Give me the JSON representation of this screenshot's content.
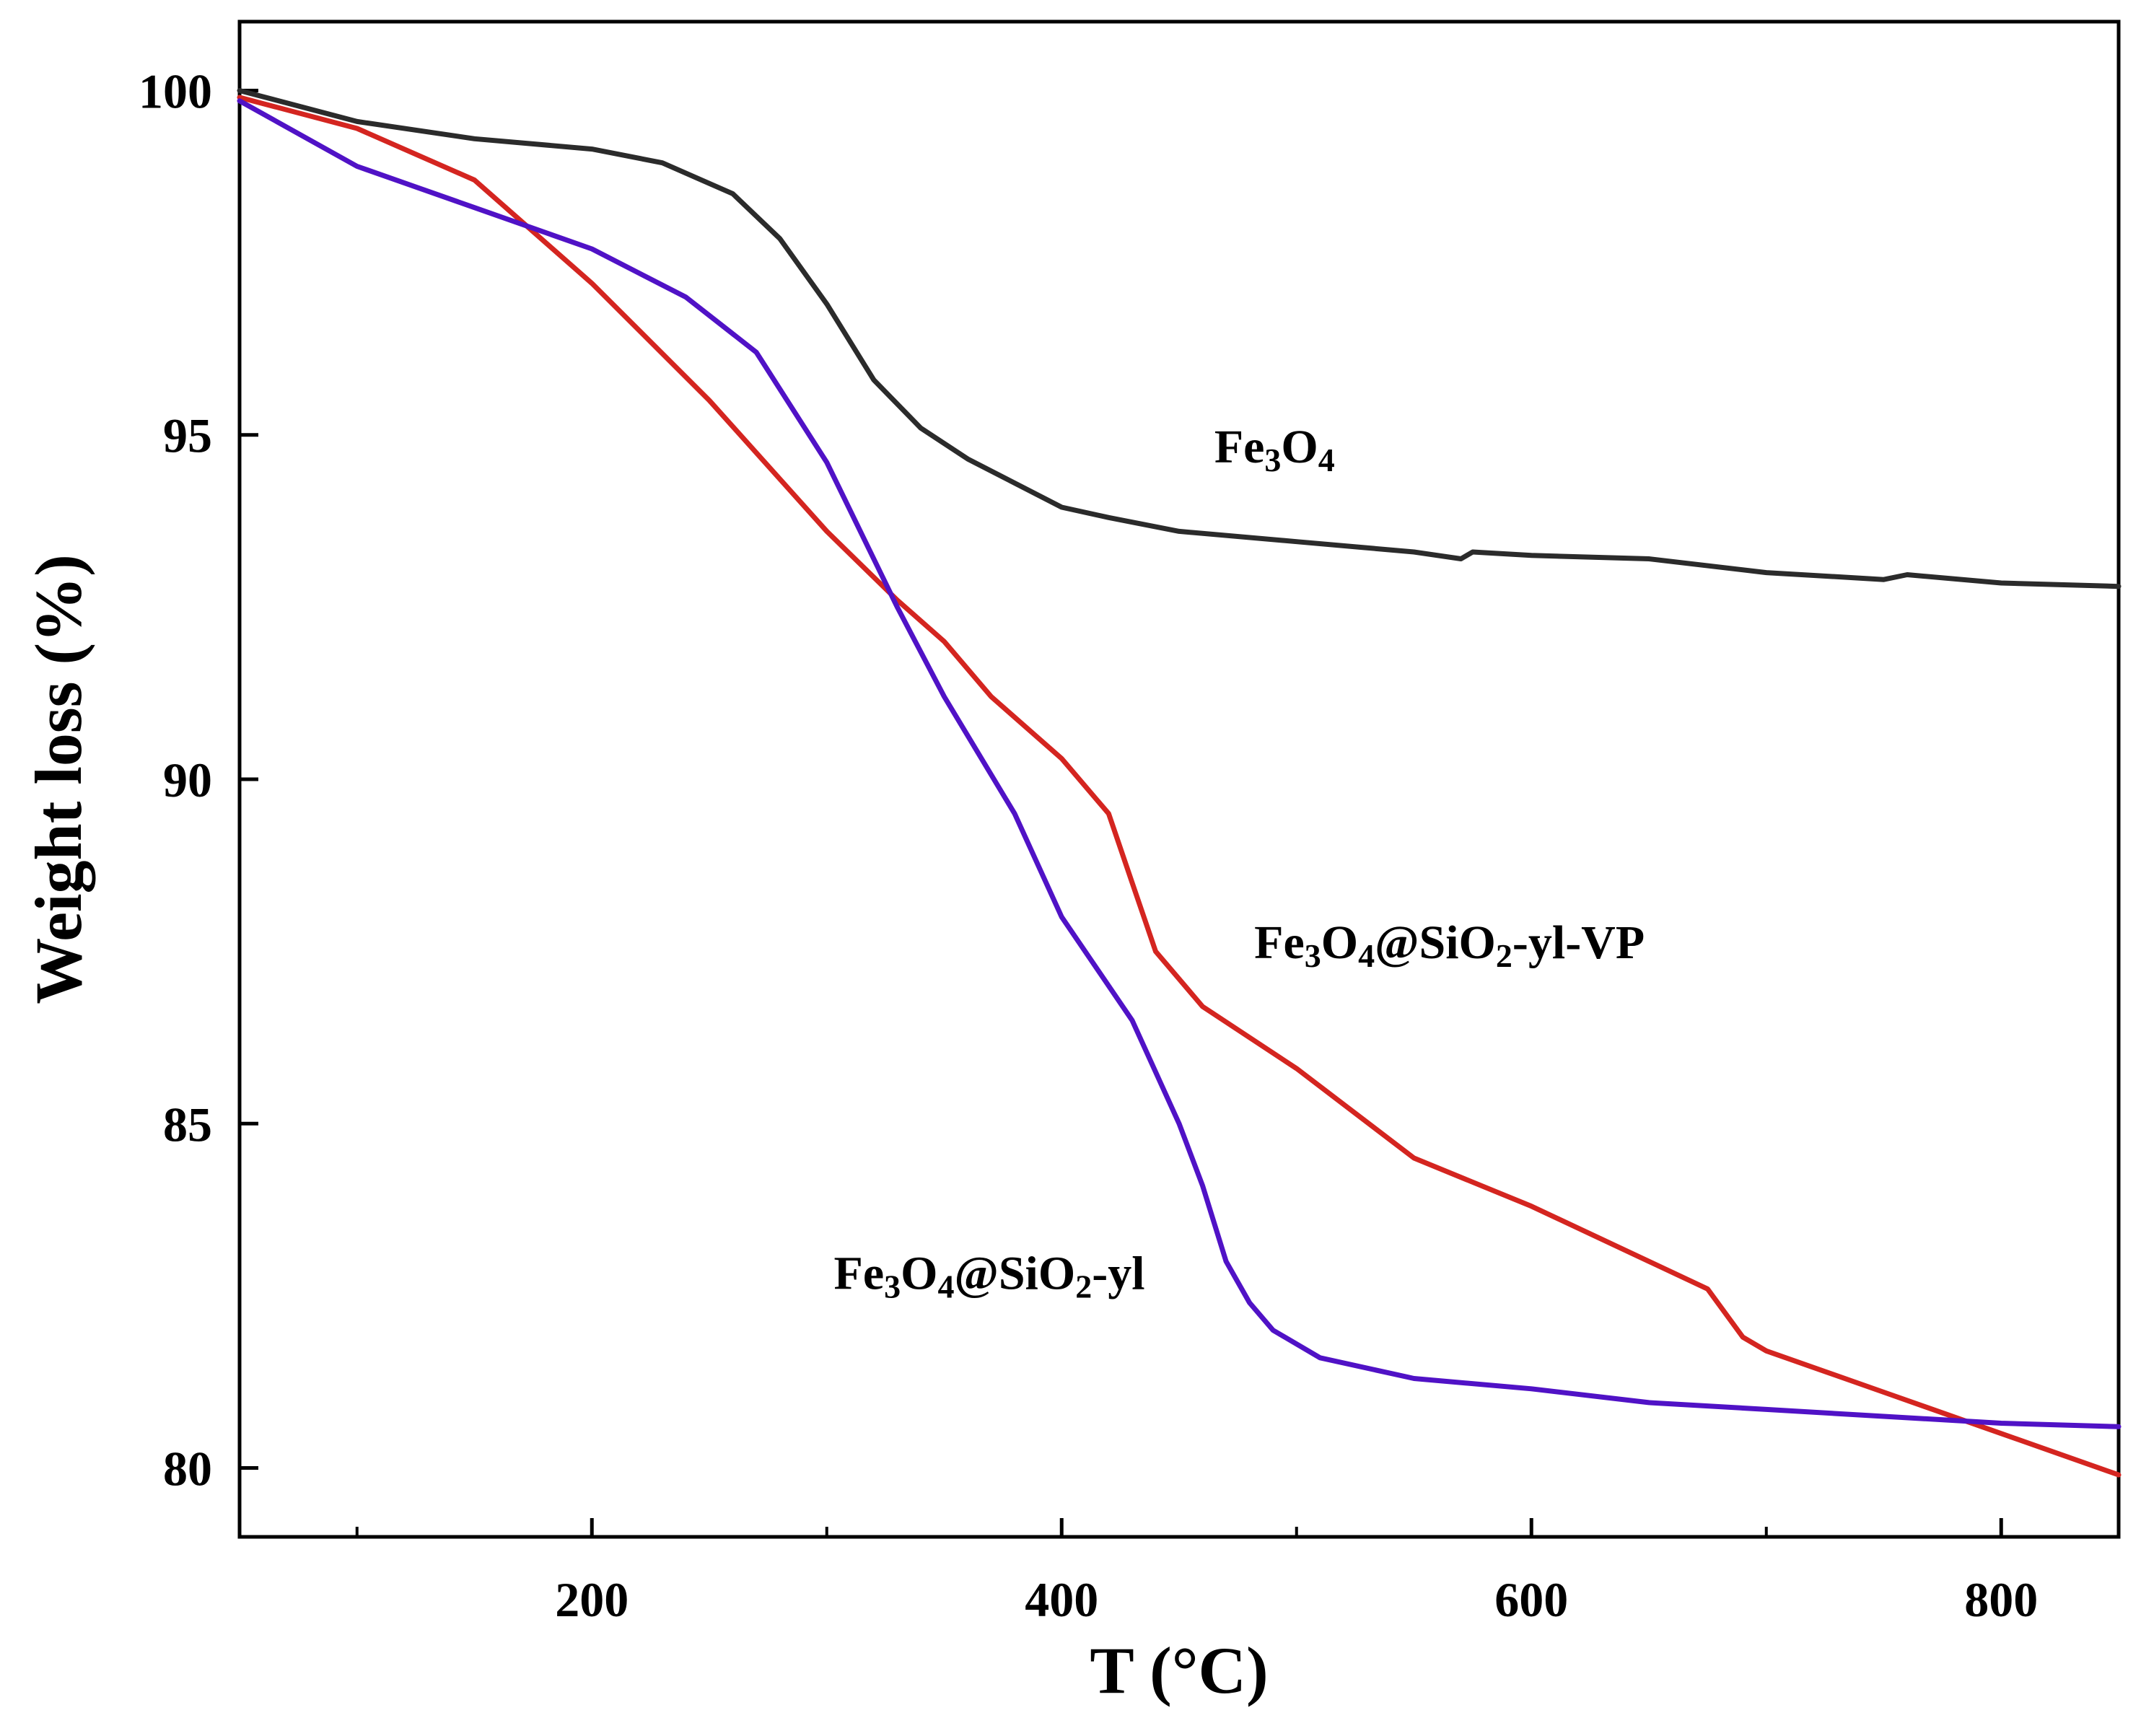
{
  "chart_data": {
    "type": "line",
    "title": "",
    "xlabel": "T (°C)",
    "ylabel": "Weight loss (%)",
    "xlim": [
      50,
      850
    ],
    "ylim": [
      79,
      101
    ],
    "x_ticks": [
      200,
      400,
      600,
      800
    ],
    "x_minor_ticks": [
      100,
      300,
      500,
      700
    ],
    "y_ticks": [
      80,
      85,
      90,
      95,
      100
    ],
    "grid": false,
    "series": [
      {
        "name": "Fe3O4",
        "label_parts": [
          {
            "text": "Fe",
            "sub": false
          },
          {
            "text": "3",
            "sub": true
          },
          {
            "text": "O",
            "sub": false
          },
          {
            "text": "4",
            "sub": true
          }
        ],
        "label_anchor": [
          465,
          94.6
        ],
        "color": "#2b2b2b",
        "x": [
          50,
          100,
          150,
          200,
          230,
          260,
          280,
          300,
          320,
          340,
          360,
          380,
          400,
          420,
          450,
          500,
          550,
          570,
          575,
          600,
          650,
          700,
          750,
          760,
          800,
          850
        ],
        "y": [
          100.0,
          99.55,
          99.3,
          99.15,
          98.95,
          98.5,
          97.85,
          96.9,
          95.8,
          95.1,
          94.65,
          94.3,
          93.95,
          93.8,
          93.6,
          93.45,
          93.3,
          93.2,
          93.3,
          93.25,
          93.2,
          93.0,
          92.9,
          92.97,
          92.85,
          92.8
        ]
      },
      {
        "name": "Fe3O4@SiO2-yl-VP",
        "label_parts": [
          {
            "text": "Fe",
            "sub": false
          },
          {
            "text": "3",
            "sub": true
          },
          {
            "text": "O",
            "sub": false
          },
          {
            "text": "4",
            "sub": true
          },
          {
            "text": "@SiO",
            "sub": false
          },
          {
            "text": "2",
            "sub": true
          },
          {
            "text": "-yl-VP",
            "sub": false
          }
        ],
        "label_anchor": [
          482,
          87.4
        ],
        "color": "#d42520",
        "x": [
          50,
          100,
          150,
          200,
          250,
          300,
          330,
          350,
          370,
          400,
          420,
          430,
          440,
          460,
          500,
          550,
          600,
          650,
          675,
          690,
          700,
          750,
          800,
          850
        ],
        "y": [
          99.9,
          99.45,
          98.7,
          97.2,
          95.5,
          93.6,
          92.6,
          92.0,
          91.2,
          90.3,
          89.5,
          88.5,
          87.5,
          86.7,
          85.8,
          84.5,
          83.8,
          83.0,
          82.6,
          81.9,
          81.7,
          81.1,
          80.5,
          79.9
        ]
      },
      {
        "name": "Fe3O4@SiO2-yl",
        "label_parts": [
          {
            "text": "Fe",
            "sub": false
          },
          {
            "text": "3",
            "sub": true
          },
          {
            "text": "O",
            "sub": false
          },
          {
            "text": "4",
            "sub": true
          },
          {
            "text": "@SiO",
            "sub": false
          },
          {
            "text": "2",
            "sub": true
          },
          {
            "text": "-yl",
            "sub": false
          }
        ],
        "label_anchor": [
          303,
          82.6
        ],
        "color": "#5012c6",
        "x": [
          50,
          100,
          150,
          200,
          240,
          270,
          300,
          330,
          350,
          380,
          400,
          430,
          450,
          460,
          470,
          480,
          490,
          510,
          550,
          600,
          650,
          700,
          750,
          800,
          850
        ],
        "y": [
          99.85,
          98.9,
          98.3,
          97.7,
          97.0,
          96.2,
          94.6,
          92.5,
          91.2,
          89.5,
          88.0,
          86.5,
          85.0,
          84.1,
          83.0,
          82.4,
          82.0,
          81.6,
          81.3,
          81.15,
          80.95,
          80.85,
          80.75,
          80.65,
          80.6
        ]
      }
    ]
  }
}
